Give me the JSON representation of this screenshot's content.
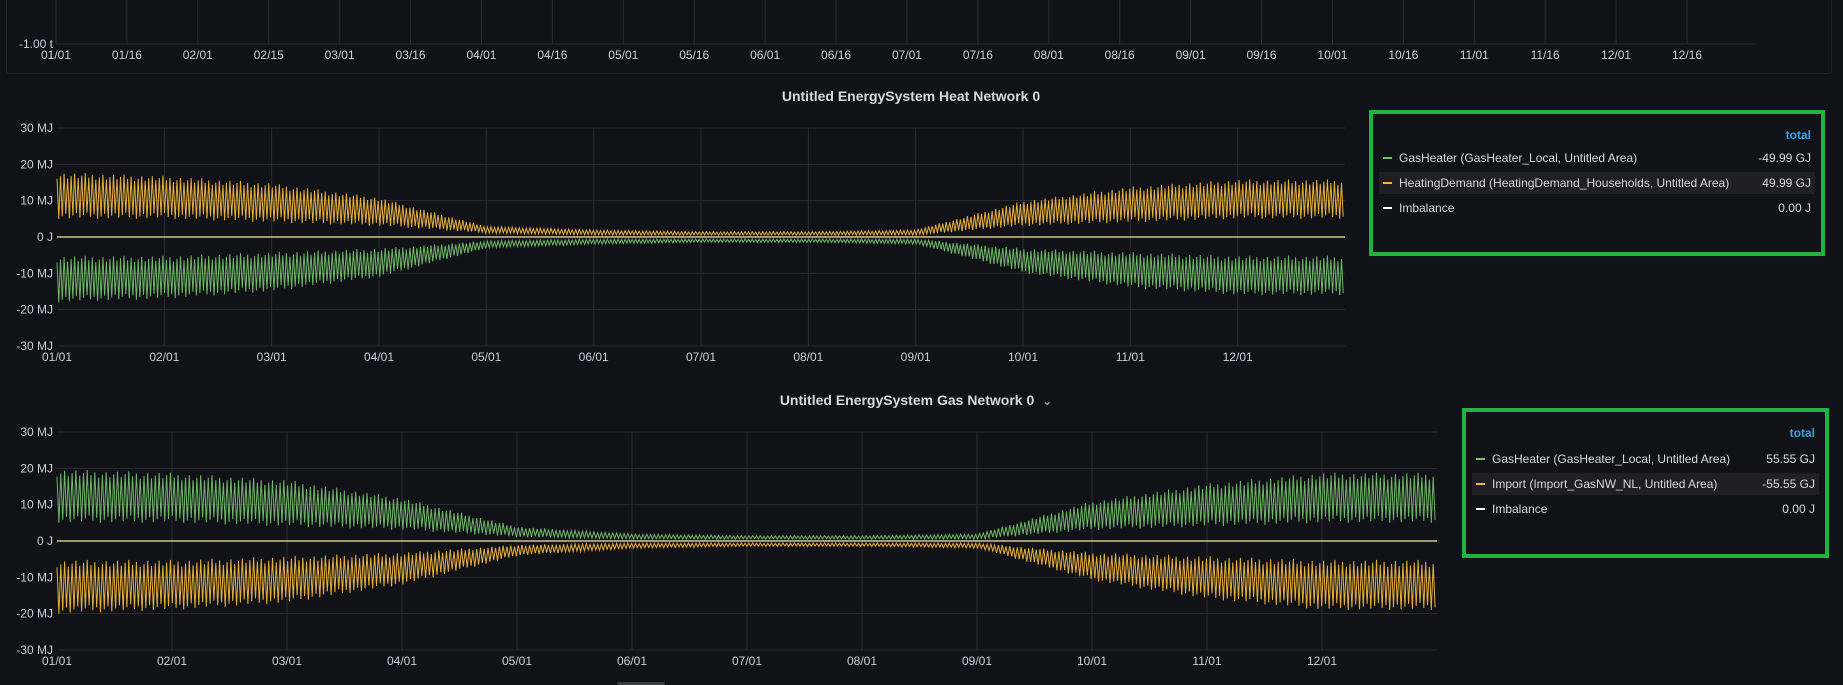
{
  "top_panel": {
    "y_tick": "-1.00 t",
    "x_ticks": [
      "01/01",
      "01/16",
      "02/01",
      "02/15",
      "03/01",
      "03/16",
      "04/01",
      "04/16",
      "05/01",
      "05/16",
      "06/01",
      "06/16",
      "07/01",
      "07/16",
      "08/01",
      "08/16",
      "09/01",
      "09/16",
      "10/01",
      "10/16",
      "11/01",
      "11/16",
      "12/01",
      "12/16"
    ]
  },
  "heat_panel": {
    "title": "Untitled EnergySystem Heat Network 0",
    "legend": {
      "header": "total",
      "rows": [
        {
          "name": "GasHeater (GasHeater_Local, Untitled Area)",
          "value": "-49.99 GJ",
          "color": "#73bf69"
        },
        {
          "name": "HeatingDemand (HeatingDemand_Households, Untitled Area)",
          "value": "49.99 GJ",
          "color": "#f2b73a"
        },
        {
          "name": "Imbalance",
          "value": "0.00 J",
          "color": "#ffffff"
        }
      ]
    }
  },
  "gas_panel": {
    "title": "Untitled EnergySystem Gas Network 0",
    "title_chevron": "⌄",
    "legend": {
      "header": "total",
      "rows": [
        {
          "name": "GasHeater (GasHeater_Local, Untitled Area)",
          "value": "55.55 GJ",
          "color": "#73bf69"
        },
        {
          "name": "Import (Import_GasNW_NL, Untitled Area)",
          "value": "-55.55 GJ",
          "color": "#f2b73a"
        },
        {
          "name": "Imbalance",
          "value": "0.00 J",
          "color": "#ffffff"
        }
      ]
    }
  },
  "chart_data": [
    {
      "type": "line",
      "title": "Untitled EnergySystem Heat Network 0",
      "y_ticks": [
        "30 MJ",
        "20 MJ",
        "10 MJ",
        "0 J",
        "-10 MJ",
        "-20 MJ",
        "-30 MJ"
      ],
      "ylim": [
        -30,
        30
      ],
      "x_ticks": [
        "01/01",
        "02/01",
        "03/01",
        "04/01",
        "05/01",
        "06/01",
        "07/01",
        "08/01",
        "09/01",
        "10/01",
        "11/01",
        "12/01"
      ],
      "grid": true,
      "legend_position": "right",
      "series": [
        {
          "name": "GasHeater (GasHeater_Local, Untitled Area)",
          "color": "#73bf69",
          "monthly_envelope_min_MJ": [
            -18,
            -17,
            -15,
            -11,
            -3,
            -2,
            -1.5,
            -1.5,
            -2,
            -10,
            -14,
            -16
          ],
          "monthly_envelope_max_MJ": [
            -5,
            -5,
            -4,
            -3,
            -1,
            -0.5,
            -0.5,
            -0.5,
            -0.5,
            -3,
            -4,
            -5
          ]
        },
        {
          "name": "HeatingDemand (HeatingDemand_Households, Untitled Area)",
          "color": "#f2b73a",
          "monthly_envelope_min_MJ": [
            5,
            5,
            4,
            3,
            1,
            0.5,
            0.5,
            0.5,
            0.5,
            3,
            4,
            5
          ],
          "monthly_envelope_max_MJ": [
            18,
            17,
            15,
            11,
            3,
            2,
            1.5,
            1.5,
            2,
            10,
            14,
            16
          ]
        },
        {
          "name": "Imbalance",
          "color": "#ffffff",
          "constant_MJ": 0
        }
      ]
    },
    {
      "type": "line",
      "title": "Untitled EnergySystem Gas Network 0",
      "y_ticks": [
        "30 MJ",
        "20 MJ",
        "10 MJ",
        "0 J",
        "-10 MJ",
        "-20 MJ",
        "-30 MJ"
      ],
      "ylim": [
        -30,
        30
      ],
      "x_ticks": [
        "01/01",
        "02/01",
        "03/01",
        "04/01",
        "05/01",
        "06/01",
        "07/01",
        "08/01",
        "09/01",
        "10/01",
        "11/01",
        "12/01"
      ],
      "grid": true,
      "legend_position": "right",
      "series": [
        {
          "name": "GasHeater (GasHeater_Local, Untitled Area)",
          "color": "#73bf69",
          "monthly_envelope_min_MJ": [
            5,
            5,
            4,
            3,
            1,
            0.5,
            0.5,
            0.5,
            0.5,
            3,
            4,
            5
          ],
          "monthly_envelope_max_MJ": [
            20,
            19,
            17,
            12,
            4,
            2,
            1.5,
            1.5,
            2,
            11,
            16,
            19
          ]
        },
        {
          "name": "Import (Import_GasNW_NL, Untitled Area)",
          "color": "#f2b73a",
          "monthly_envelope_min_MJ": [
            -20,
            -19,
            -17,
            -12,
            -4,
            -2,
            -1.5,
            -1.5,
            -2,
            -11,
            -16,
            -19
          ],
          "monthly_envelope_max_MJ": [
            -5,
            -5,
            -4,
            -3,
            -1,
            -0.5,
            -0.5,
            -0.5,
            -0.5,
            -3,
            -4,
            -5
          ]
        },
        {
          "name": "Imbalance",
          "color": "#ffffff",
          "constant_MJ": 0
        }
      ]
    }
  ]
}
